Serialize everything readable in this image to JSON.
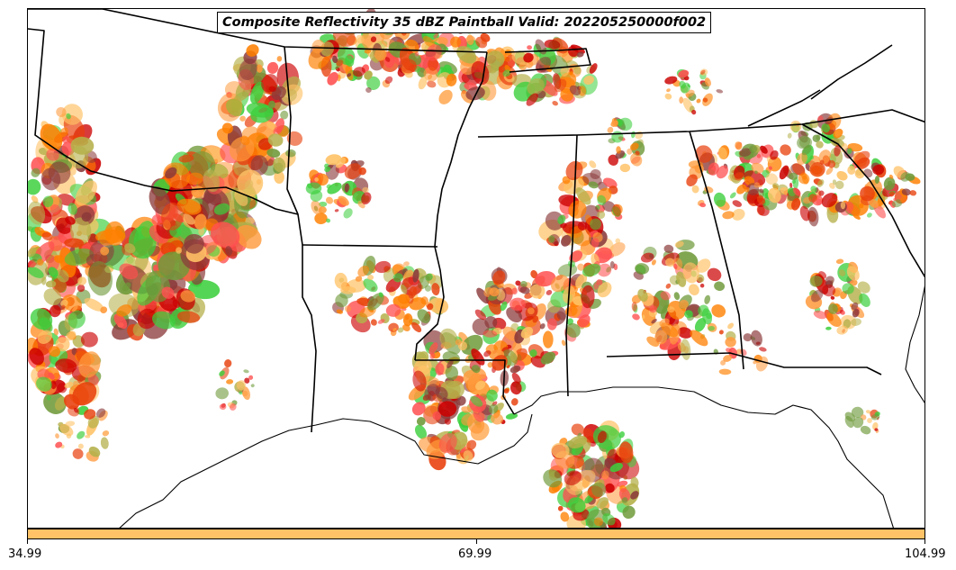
{
  "title": "Composite Reflectivity 35 dBZ Paintball Valid: 202205250000f002",
  "colorbar": {
    "color": "#ffc266",
    "ticks": [
      "34.99",
      "69.99",
      "104.99"
    ]
  },
  "palette": [
    "#ff7f00",
    "#e8400c",
    "#cc0000",
    "#ff9a3c",
    "#b5b04a",
    "#6f9a3a",
    "#3ccf3c",
    "#8b3a3a",
    "#ff5050",
    "#ffc266"
  ]
}
